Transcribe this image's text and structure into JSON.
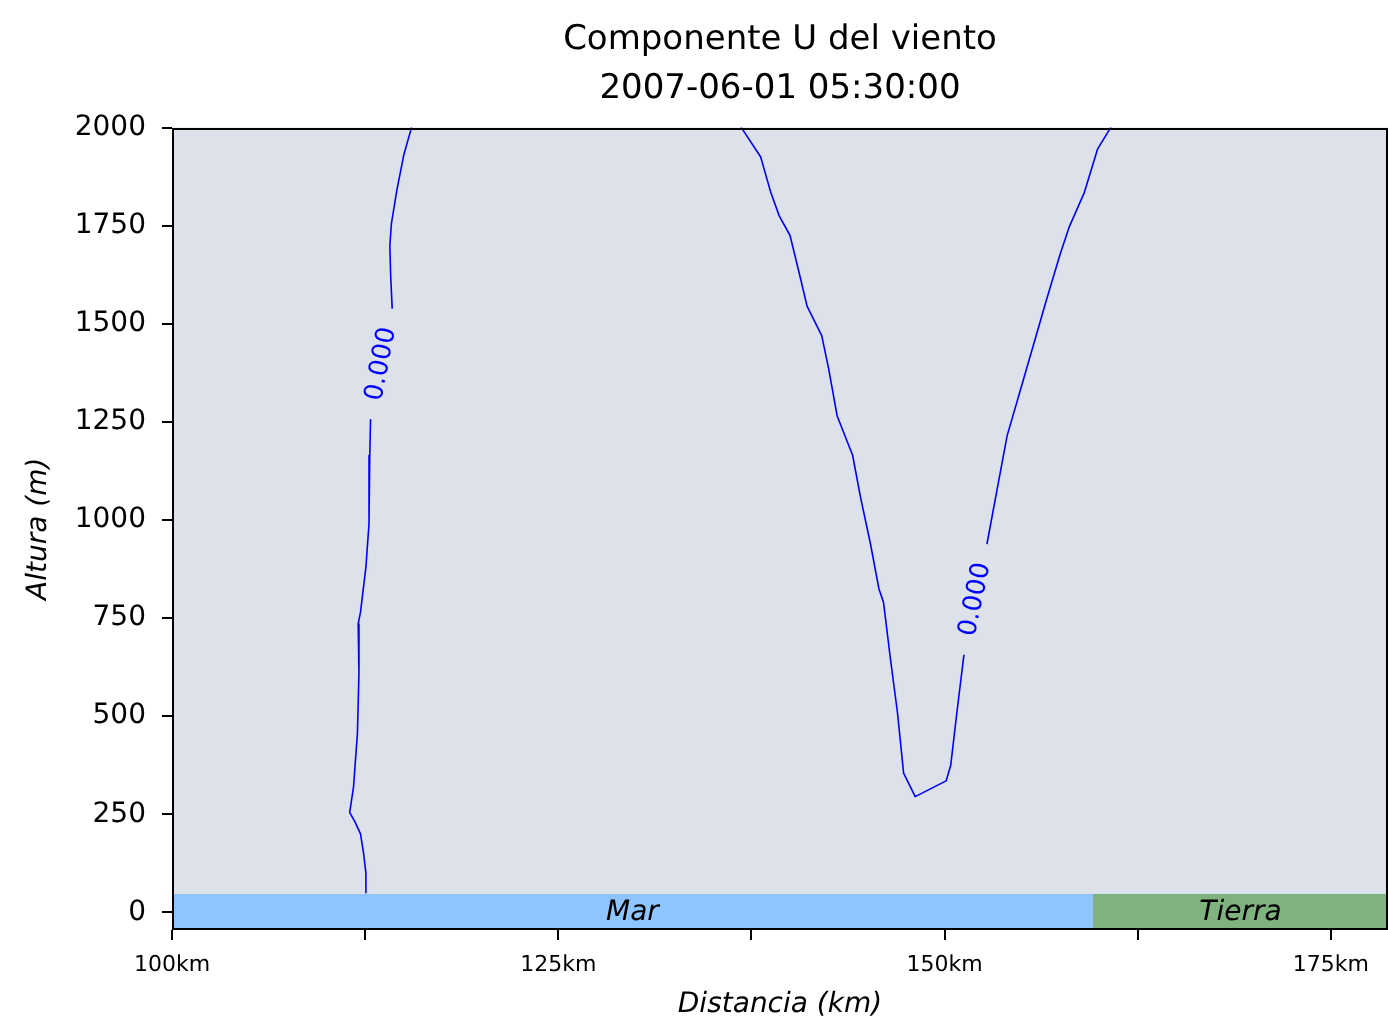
{
  "chart_data": {
    "type": "line",
    "title": "Componente U del viento",
    "subtitle": "2007-06-01 05:30:00",
    "xlabel": "Distancia (km)",
    "ylabel": "Altura (m)",
    "xlim": [
      100,
      178.7
    ],
    "xticks": [
      {
        "value": 100,
        "label": "100km"
      },
      {
        "value": 112.5,
        "label": null
      },
      {
        "value": 125,
        "label": "125km"
      },
      {
        "value": 137.5,
        "label": null
      },
      {
        "value": 150,
        "label": "150km"
      },
      {
        "value": 162.5,
        "label": null
      },
      {
        "value": 175,
        "label": "175km"
      }
    ],
    "ylim": [
      -45,
      2000
    ],
    "yticks": [
      0,
      250,
      500,
      750,
      1000,
      1250,
      1500,
      1750,
      2000
    ],
    "series": [
      {
        "color": "#0000ff",
        "x": [
          115.5,
          115.0,
          114.55,
          114.2,
          114.1,
          114.15,
          114.25,
          113.5,
          112.85,
          112.8,
          112.75,
          112.55,
          112.2,
          112.05,
          112.1,
          112.0,
          111.85,
          111.75,
          111.5,
          111.85,
          112.2,
          112.4,
          112.55,
          112.55
        ],
        "values": [
          2000,
          1930,
          1840,
          1755,
          1700,
          1625,
          1540,
          null,
          1255,
          1165,
          990,
          880,
          765,
          735,
          610,
          455,
          375,
          320,
          255,
          230,
          200,
          150,
          100,
          50
        ]
      },
      {
        "color": "#0000ff",
        "x": [
          136.85,
          138.1,
          138.75,
          139.3,
          140.0,
          140.65,
          141.1,
          142.05,
          142.5,
          143.05,
          144.05,
          144.55,
          145.2,
          145.75,
          146.05,
          146.5,
          146.95,
          147.35,
          148.1,
          150.1,
          150.4,
          150.8,
          151.25,
          151.9,
          152.75,
          154.05,
          154.9,
          156.15,
          156.55,
          157.5,
          158.05,
          159.05,
          159.9,
          160.75
        ],
        "values": [
          2000,
          1925,
          1835,
          1775,
          1725,
          1620,
          1545,
          1470,
          1385,
          1265,
          1165,
          1060,
          940,
          825,
          790,
          645,
          510,
          355,
          295,
          335,
          375,
          510,
          655,
          null,
          940,
          1215,
          1330,
          1500,
          1555,
          1680,
          1745,
          1835,
          1945,
          2000
        ]
      }
    ],
    "annotations": [
      "0.000",
      "0.000"
    ],
    "bands": [
      {
        "axis": "x",
        "from": 100,
        "to": 159.6,
        "label": "Mar",
        "color": "#8ec5ff"
      },
      {
        "axis": "x",
        "from": 159.6,
        "to": 178.7,
        "label": "Tierra",
        "color": "#7fb27f"
      }
    ],
    "legend": false,
    "marker": "none",
    "line_style": "solid"
  }
}
